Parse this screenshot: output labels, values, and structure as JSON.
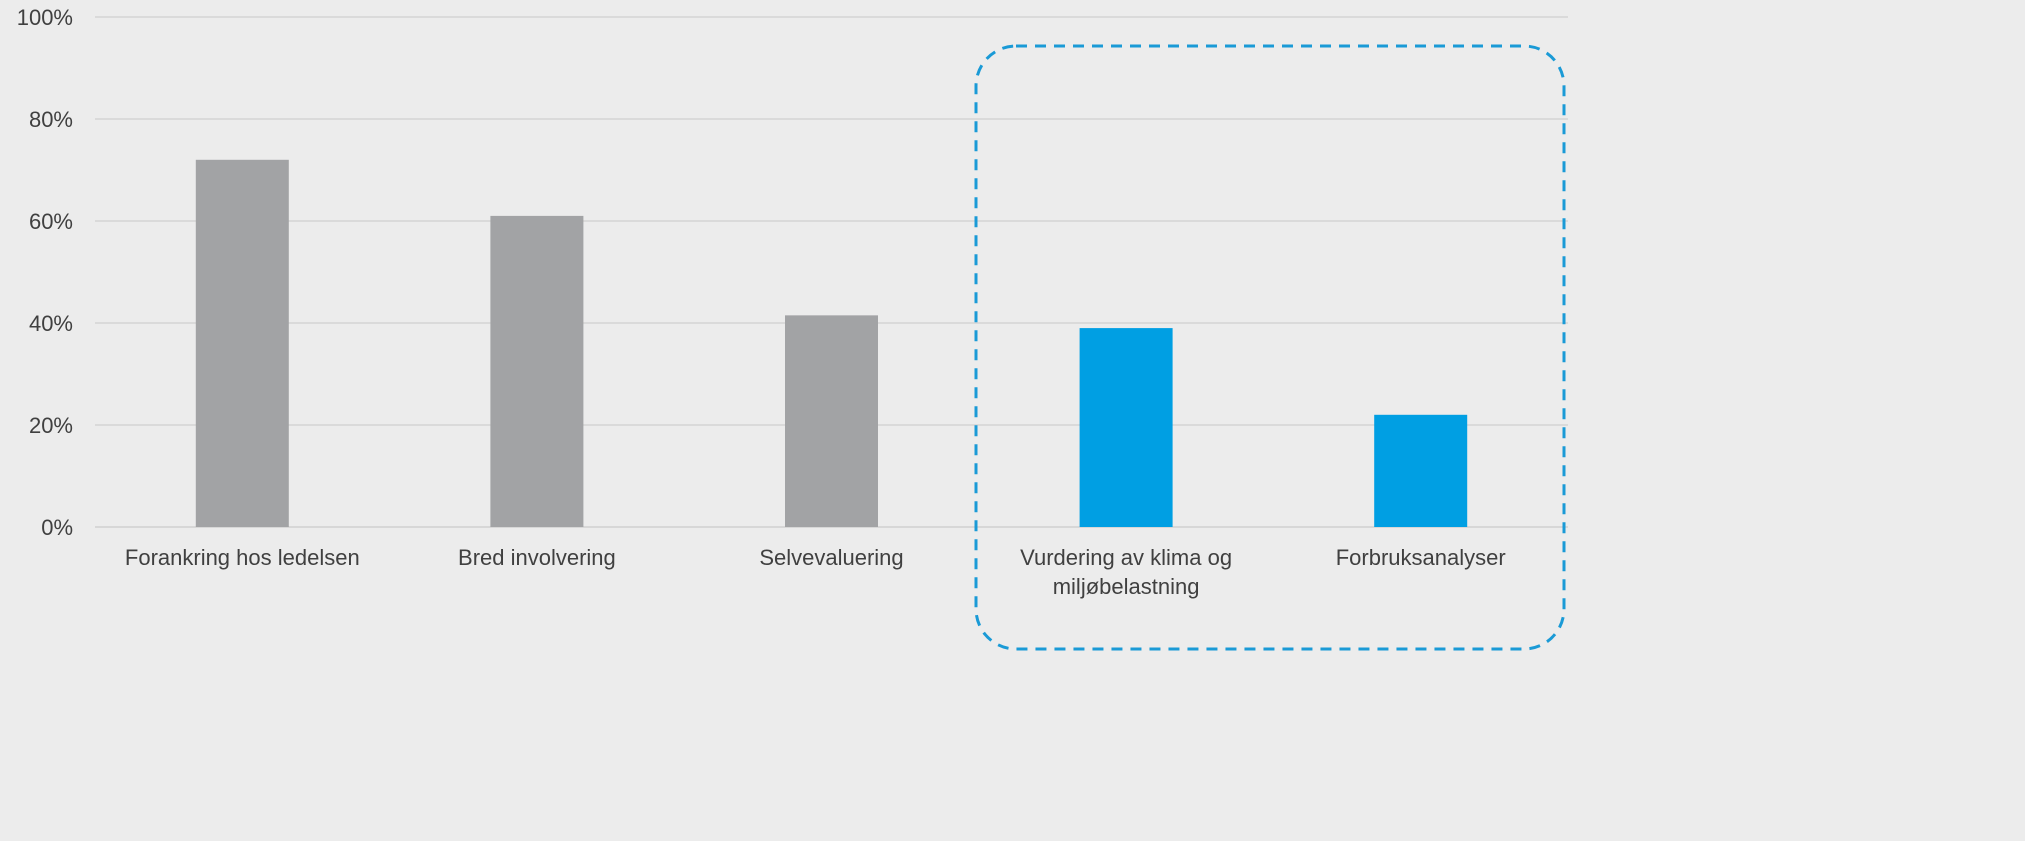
{
  "chart_data": {
    "type": "bar",
    "title": "",
    "xlabel": "",
    "ylabel": "",
    "categories": [
      "Forankring hos ledelsen",
      "Bred involvering",
      "Selvevaluering",
      "Vurdering av klima og miljøbelastning",
      "Forbruksanalyser"
    ],
    "category_lines": [
      [
        "Forankring hos ledelsen"
      ],
      [
        "Bred involvering"
      ],
      [
        "Selvevaluering"
      ],
      [
        "Vurdering av klima og",
        "miljøbelastning"
      ],
      [
        "Forbruksanalyser"
      ]
    ],
    "values": [
      72,
      61,
      41.5,
      39,
      22
    ],
    "value_unit": "%",
    "ylim": [
      0,
      100
    ],
    "yticks": [
      0,
      20,
      40,
      60,
      80,
      100
    ],
    "ytick_labels": [
      "0%",
      "20%",
      "40%",
      "60%",
      "80%",
      "100%"
    ],
    "grid": true,
    "legend": "none",
    "highlighted_categories": [
      "Vurdering av klima og miljøbelastning",
      "Forbruksanalyser"
    ],
    "highlight": "dashed rounded box around the last two categories"
  },
  "colors": {
    "background": "#ececec",
    "bar_default": "#a2a3a5",
    "bar_highlight": "#009fe3",
    "gridline": "#d4d4d4",
    "text": "#404040",
    "highlight_box": "#1a9ad6"
  }
}
